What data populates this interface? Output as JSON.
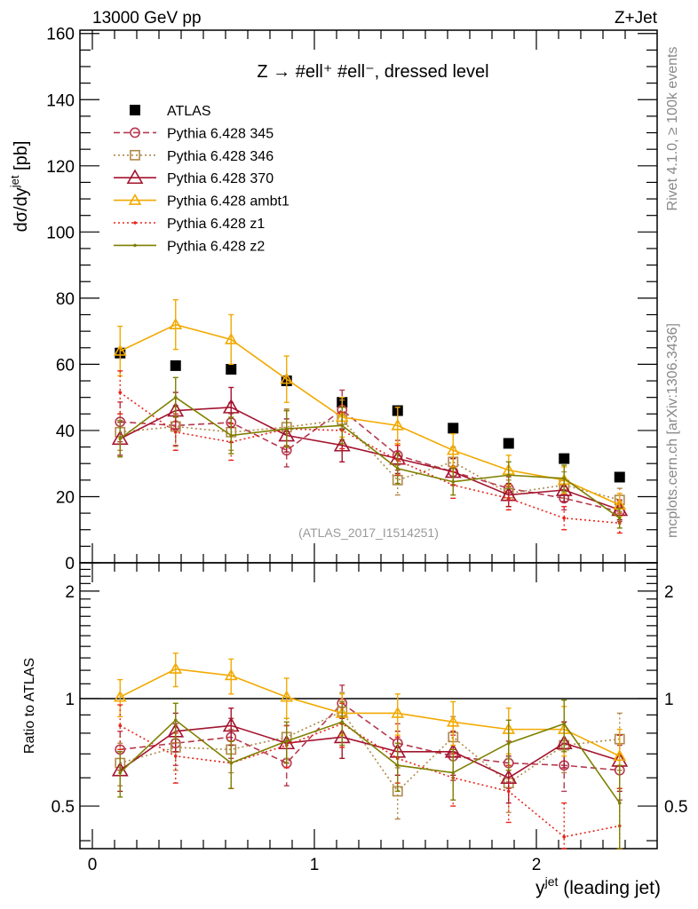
{
  "chart_data": [
    {
      "type": "line",
      "panel": "main",
      "title": "Z → #ell⁺ #ell⁻, dressed level",
      "header_left": "13000 GeV pp",
      "header_right": "Z+Jet",
      "xlabel": "",
      "ylabel": "dσ/dy^jet [pb]",
      "ylabel_main": "dσ/dy",
      "ylabel_sup": "jet",
      "ylabel_unit": " [pb]",
      "xlim": [
        -0.05,
        2.55
      ],
      "ylim": [
        0,
        161
      ],
      "yticks": [
        0,
        20,
        40,
        60,
        80,
        100,
        120,
        140,
        160
      ],
      "ytick_labels": [
        "0",
        "20",
        "40",
        "60",
        "80",
        "100",
        "120",
        "140",
        "160"
      ],
      "annotation": "(ATLAS_2017_I1514251)",
      "side_text_top": "Rivet 4.1.0, ≥ 100k events",
      "side_text_bottom": "mcplots.cern.ch [arXiv:1306.3436]",
      "legend_position": "top-left",
      "x": [
        0.125,
        0.375,
        0.625,
        0.875,
        1.125,
        1.375,
        1.625,
        1.875,
        2.125,
        2.375
      ],
      "series": [
        {
          "name": "ATLAS",
          "color": "#000000",
          "marker": "square-filled",
          "line": "none",
          "values": [
            63.4,
            59.6,
            58.5,
            55.0,
            48.5,
            46.0,
            40.7,
            36.1,
            31.5,
            25.9
          ],
          "errors": [
            0,
            0,
            0,
            0,
            0,
            0,
            0,
            0,
            0,
            0
          ]
        },
        {
          "name": "Pythia 6.428 345",
          "color": "#b5384e",
          "marker": "circle-open",
          "line": "dashed",
          "values": [
            42.6,
            41.5,
            42.4,
            34.0,
            46.2,
            32.5,
            27.5,
            22.5,
            19.5,
            15.5
          ],
          "errors": [
            6,
            6,
            6,
            5,
            6,
            4.5,
            4,
            3.5,
            3.5,
            3
          ]
        },
        {
          "name": "Pythia 6.428 346",
          "color": "#b0894a",
          "marker": "square-open",
          "line": "dotted",
          "values": [
            39.5,
            41.2,
            39.5,
            41.0,
            43.2,
            25.0,
            30.5,
            21.0,
            23.5,
            19.0
          ],
          "errors": [
            5.5,
            6,
            5.5,
            5.5,
            6,
            4.5,
            4.5,
            4,
            4,
            3.5
          ]
        },
        {
          "name": "Pythia 6.428 370",
          "color": "#a3142e",
          "marker": "triangle-open",
          "line": "solid",
          "values": [
            37.5,
            46.0,
            47.0,
            38.5,
            35.5,
            31.5,
            27.5,
            20.5,
            22.0,
            16.0
          ],
          "errors": [
            5,
            5.5,
            6,
            5,
            5,
            4.5,
            4,
            3.5,
            3.5,
            3
          ]
        },
        {
          "name": "Pythia 6.428 ambt1",
          "color": "#f2a900",
          "marker": "triangle-open",
          "line": "solid",
          "values": [
            64.0,
            72.0,
            67.5,
            55.5,
            44.0,
            41.5,
            34.0,
            28.0,
            25.0,
            17.5
          ],
          "errors": [
            7.5,
            7.5,
            7.5,
            7,
            6,
            5.5,
            5,
            4.5,
            4,
            3.5
          ]
        },
        {
          "name": "Pythia 6.428 z1",
          "color": "#e8241a",
          "marker": "dot",
          "line": "dotted",
          "values": [
            51.5,
            39.5,
            36.5,
            40.5,
            40.0,
            31.0,
            23.5,
            19.5,
            13.5,
            12.0
          ],
          "errors": [
            6.5,
            5.5,
            5.5,
            5.5,
            5.5,
            4.5,
            4,
            3.5,
            3.5,
            3
          ]
        },
        {
          "name": "Pythia 6.428 z2",
          "color": "#7f8000",
          "marker": "dot",
          "line": "solid",
          "values": [
            37.5,
            50.0,
            38.5,
            40.5,
            41.5,
            28.5,
            24.5,
            26.5,
            25.5,
            13.5
          ],
          "errors": [
            5.5,
            6,
            5.5,
            5.5,
            5.5,
            4.5,
            4,
            4,
            4,
            3
          ]
        }
      ]
    },
    {
      "type": "line",
      "panel": "ratio",
      "xlabel": "y^jet (leading jet)",
      "xlabel_main": "y",
      "xlabel_sup": "jet",
      "xlabel_rest": " (leading jet)",
      "ylabel": "Ratio to ATLAS",
      "xlim": [
        -0.05,
        2.55
      ],
      "ylim": [
        0.38,
        2.4
      ],
      "yscale": "log",
      "yticks": [
        0.5,
        1,
        2
      ],
      "ytick_labels": [
        "0.5",
        "1",
        "2"
      ],
      "xticks": [
        0,
        1,
        2
      ],
      "xtick_labels": [
        "0",
        "1",
        "2"
      ],
      "reference_line": 1,
      "x": [
        0.125,
        0.375,
        0.625,
        0.875,
        1.125,
        1.375,
        1.625,
        1.875,
        2.125,
        2.375
      ],
      "series": [
        {
          "name": "Pythia 6.428 345",
          "color": "#b5384e",
          "marker": "circle-open",
          "line": "dashed",
          "values": [
            0.72,
            0.75,
            0.78,
            0.66,
            0.97,
            0.75,
            0.69,
            0.66,
            0.65,
            0.63
          ],
          "errors": [
            0.09,
            0.1,
            0.1,
            0.09,
            0.12,
            0.1,
            0.1,
            0.1,
            0.1,
            0.11
          ]
        },
        {
          "name": "Pythia 6.428 346",
          "color": "#b0894a",
          "marker": "square-open",
          "line": "dotted",
          "values": [
            0.66,
            0.73,
            0.72,
            0.78,
            0.92,
            0.55,
            0.78,
            0.58,
            0.74,
            0.77
          ],
          "errors": [
            0.09,
            0.1,
            0.1,
            0.1,
            0.12,
            0.09,
            0.11,
            0.1,
            0.12,
            0.14
          ]
        },
        {
          "name": "Pythia 6.428 370",
          "color": "#a3142e",
          "marker": "triangle-open",
          "line": "solid",
          "values": [
            0.63,
            0.81,
            0.84,
            0.75,
            0.78,
            0.71,
            0.71,
            0.6,
            0.75,
            0.67
          ],
          "errors": [
            0.08,
            0.1,
            0.1,
            0.09,
            0.1,
            0.1,
            0.1,
            0.09,
            0.11,
            0.12
          ]
        },
        {
          "name": "Pythia 6.428 ambt1",
          "color": "#f2a900",
          "marker": "triangle-open",
          "line": "solid",
          "values": [
            1.01,
            1.21,
            1.16,
            1.01,
            0.91,
            0.91,
            0.86,
            0.82,
            0.82,
            0.69
          ],
          "errors": [
            0.12,
            0.13,
            0.13,
            0.13,
            0.12,
            0.12,
            0.12,
            0.12,
            0.13,
            0.13
          ]
        },
        {
          "name": "Pythia 6.428 z1",
          "color": "#e8241a",
          "marker": "dot",
          "line": "dotted",
          "values": [
            0.84,
            0.69,
            0.66,
            0.74,
            0.85,
            0.68,
            0.6,
            0.55,
            0.41,
            0.44
          ],
          "errors": [
            0.12,
            0.11,
            0.1,
            0.1,
            0.12,
            0.1,
            0.1,
            0.1,
            0.1,
            0.12
          ]
        },
        {
          "name": "Pythia 6.428 z2",
          "color": "#7f8000",
          "marker": "dot",
          "line": "solid",
          "values": [
            0.62,
            0.87,
            0.66,
            0.76,
            0.86,
            0.65,
            0.62,
            0.75,
            0.85,
            0.51
          ],
          "errors": [
            0.09,
            0.1,
            0.1,
            0.1,
            0.12,
            0.1,
            0.1,
            0.12,
            0.14,
            0.14
          ]
        }
      ]
    }
  ]
}
